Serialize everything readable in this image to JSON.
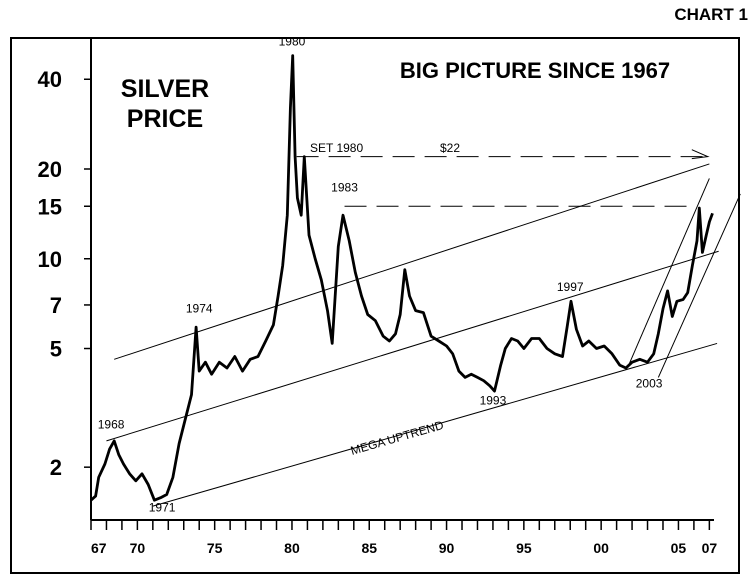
{
  "chart_data": {
    "type": "line",
    "chart_id": "CHART 1",
    "title": "BIG PICTURE SINCE 1967",
    "subtitle": "SILVER\nPRICE",
    "y_scale": "log",
    "ylim": [
      1.33,
      55
    ],
    "xlim": [
      1967,
      2007.3
    ],
    "y_ticks": [
      {
        "value": 40,
        "label": "40"
      },
      {
        "value": 20,
        "label": "20"
      },
      {
        "value": 15,
        "label": "15"
      },
      {
        "value": 10,
        "label": "10"
      },
      {
        "value": 7,
        "label": "7"
      },
      {
        "value": 5,
        "label": "5"
      },
      {
        "value": 2,
        "label": "2"
      }
    ],
    "x_ticks": [
      {
        "year": 1967,
        "label": "67"
      },
      {
        "year": 1970,
        "label": "70"
      },
      {
        "year": 1975,
        "label": "75"
      },
      {
        "year": 1980,
        "label": "80"
      },
      {
        "year": 1985,
        "label": "85"
      },
      {
        "year": 1990,
        "label": "90"
      },
      {
        "year": 1995,
        "label": "95"
      },
      {
        "year": 2000,
        "label": "00"
      },
      {
        "year": 2005,
        "label": "05"
      },
      {
        "year": 2007,
        "label": "07"
      }
    ],
    "grid": false,
    "series": [
      {
        "color": "#000000",
        "points": [
          [
            1967.0,
            1.55
          ],
          [
            1967.3,
            1.6
          ],
          [
            1967.5,
            1.85
          ],
          [
            1967.9,
            2.05
          ],
          [
            1968.2,
            2.3
          ],
          [
            1968.5,
            2.45
          ],
          [
            1968.8,
            2.2
          ],
          [
            1969.1,
            2.05
          ],
          [
            1969.5,
            1.9
          ],
          [
            1969.9,
            1.8
          ],
          [
            1970.3,
            1.9
          ],
          [
            1970.7,
            1.75
          ],
          [
            1971.1,
            1.55
          ],
          [
            1971.5,
            1.58
          ],
          [
            1971.9,
            1.62
          ],
          [
            1972.3,
            1.85
          ],
          [
            1972.7,
            2.4
          ],
          [
            1973.1,
            2.9
          ],
          [
            1973.5,
            3.5
          ],
          [
            1973.8,
            5.9
          ],
          [
            1974.0,
            4.2
          ],
          [
            1974.4,
            4.5
          ],
          [
            1974.8,
            4.1
          ],
          [
            1975.3,
            4.5
          ],
          [
            1975.8,
            4.3
          ],
          [
            1976.3,
            4.7
          ],
          [
            1976.8,
            4.2
          ],
          [
            1977.3,
            4.6
          ],
          [
            1977.8,
            4.7
          ],
          [
            1978.3,
            5.3
          ],
          [
            1978.8,
            6.0
          ],
          [
            1979.1,
            7.5
          ],
          [
            1979.4,
            9.5
          ],
          [
            1979.7,
            14.0
          ],
          [
            1979.9,
            32.0
          ],
          [
            1980.05,
            48.0
          ],
          [
            1980.2,
            22.0
          ],
          [
            1980.35,
            16.0
          ],
          [
            1980.6,
            14.0
          ],
          [
            1980.8,
            22.0
          ],
          [
            1981.1,
            12.0
          ],
          [
            1981.5,
            10.0
          ],
          [
            1981.9,
            8.5
          ],
          [
            1982.3,
            6.7
          ],
          [
            1982.6,
            5.2
          ],
          [
            1983.0,
            11.0
          ],
          [
            1983.3,
            14.0
          ],
          [
            1983.7,
            11.5
          ],
          [
            1984.1,
            9.0
          ],
          [
            1984.5,
            7.5
          ],
          [
            1984.9,
            6.5
          ],
          [
            1985.4,
            6.2
          ],
          [
            1985.9,
            5.5
          ],
          [
            1986.3,
            5.3
          ],
          [
            1986.7,
            5.6
          ],
          [
            1987.0,
            6.5
          ],
          [
            1987.3,
            9.2
          ],
          [
            1987.6,
            7.5
          ],
          [
            1988.0,
            6.7
          ],
          [
            1988.5,
            6.6
          ],
          [
            1989.0,
            5.5
          ],
          [
            1989.5,
            5.3
          ],
          [
            1990.0,
            5.1
          ],
          [
            1990.4,
            4.8
          ],
          [
            1990.8,
            4.2
          ],
          [
            1991.2,
            4.0
          ],
          [
            1991.6,
            4.1
          ],
          [
            1992.0,
            4.0
          ],
          [
            1992.4,
            3.9
          ],
          [
            1992.8,
            3.75
          ],
          [
            1993.1,
            3.6
          ],
          [
            1993.5,
            4.4
          ],
          [
            1993.8,
            5.0
          ],
          [
            1994.2,
            5.4
          ],
          [
            1994.6,
            5.3
          ],
          [
            1995.0,
            5.0
          ],
          [
            1995.5,
            5.4
          ],
          [
            1996.0,
            5.4
          ],
          [
            1996.5,
            5.0
          ],
          [
            1997.0,
            4.8
          ],
          [
            1997.5,
            4.7
          ],
          [
            1997.8,
            5.9
          ],
          [
            1998.05,
            7.2
          ],
          [
            1998.4,
            5.8
          ],
          [
            1998.8,
            5.1
          ],
          [
            1999.2,
            5.3
          ],
          [
            1999.7,
            5.0
          ],
          [
            2000.2,
            5.1
          ],
          [
            2000.7,
            4.8
          ],
          [
            2001.2,
            4.4
          ],
          [
            2001.6,
            4.3
          ],
          [
            2002.0,
            4.5
          ],
          [
            2002.5,
            4.6
          ],
          [
            2003.0,
            4.5
          ],
          [
            2003.4,
            4.8
          ],
          [
            2003.7,
            5.6
          ],
          [
            2004.0,
            6.8
          ],
          [
            2004.3,
            7.8
          ],
          [
            2004.6,
            6.4
          ],
          [
            2004.9,
            7.2
          ],
          [
            2005.3,
            7.3
          ],
          [
            2005.6,
            7.7
          ],
          [
            2005.9,
            9.5
          ],
          [
            2006.2,
            11.5
          ],
          [
            2006.35,
            14.8
          ],
          [
            2006.55,
            10.5
          ],
          [
            2006.8,
            12.0
          ],
          [
            2007.0,
            13.3
          ],
          [
            2007.2,
            14.2
          ]
        ]
      }
    ],
    "annotations": {
      "year_labels": [
        {
          "text": "1968",
          "x": 1968.3,
          "y": 2.7
        },
        {
          "text": "1971",
          "x": 1971.6,
          "y": 1.42
        },
        {
          "text": "1974",
          "x": 1974.0,
          "y": 6.6
        },
        {
          "text": "1980",
          "x": 1980.0,
          "y": 52.0
        },
        {
          "text": "1983",
          "x": 1983.4,
          "y": 16.8
        },
        {
          "text": "1993",
          "x": 1993.0,
          "y": 3.25
        },
        {
          "text": "1997",
          "x": 1998.0,
          "y": 7.8
        },
        {
          "text": "2003",
          "x": 2003.1,
          "y": 3.7
        }
      ],
      "set_1980_label": "SET 1980",
      "price_label": "$22",
      "trend_label": "MEGA UPTREND",
      "dashed_levels": [
        {
          "y": 22,
          "x_start": 1980.3,
          "x_end": 2006.9,
          "arrow": true
        },
        {
          "y": 15,
          "x_start": 1983.4,
          "x_end": 2006.1,
          "arrow": false
        }
      ],
      "trend_lines": [
        {
          "x1": 1968.5,
          "y1": 4.6,
          "x2": 2007.0,
          "y2": 20.8
        },
        {
          "x1": 1968.0,
          "y1": 2.45,
          "x2": 2007.6,
          "y2": 10.6
        },
        {
          "x1": 1971.0,
          "y1": 1.48,
          "x2": 2007.5,
          "y2": 5.2
        },
        {
          "x1": 2001.7,
          "y1": 4.3,
          "x2": 2007.0,
          "y2": 18.6
        },
        {
          "x1": 2003.7,
          "y1": 4.0,
          "x2": 2009.0,
          "y2": 16.5
        }
      ]
    }
  }
}
